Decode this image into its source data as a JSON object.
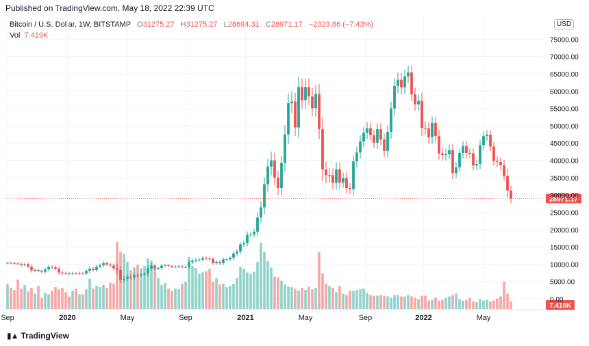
{
  "header": {
    "published": "Published on TradingView.com, May 18, 2022 22:39 UTC"
  },
  "legend": {
    "symbol": "Bitcoin / U.S. Dollar, 1W, BITSTAMP",
    "o_label": "O",
    "o_value": "31275.27",
    "h_label": "H",
    "h_value": "31275.27",
    "l_label": "L",
    "l_value": "28694.31",
    "c_label": "C",
    "c_value": "28971.17",
    "change": "−2323.86 (−7.43%)",
    "vol_label": "Vol",
    "vol_value": "7.419K"
  },
  "currency": "USD",
  "logo_text": "TradingView",
  "logo_icon": "tradingview-logo-icon",
  "colors": {
    "up": "#26a69a",
    "down": "#ef5350",
    "vol_up": "#8fd2c9",
    "vol_down": "#f5a6a5",
    "price_line": "#ef5350",
    "grid": "#f0f3fa",
    "axis_text": "#131722"
  },
  "chart_data": {
    "type": "candlestick",
    "interval": "1W",
    "y_price_ticks": [
      "75000.00",
      "70000.00",
      "65000.00",
      "60000.00",
      "55000.00",
      "50000.00",
      "45000.00",
      "40000.00",
      "35000.00",
      "30000.00",
      "25000.00",
      "20000.00",
      "15000.00",
      "10000.00",
      "5000.00",
      "0.00"
    ],
    "y_price_ticks_values": [
      75000,
      70000,
      65000,
      60000,
      55000,
      50000,
      45000,
      40000,
      35000,
      30000,
      25000,
      20000,
      15000,
      10000,
      5000,
      0
    ],
    "ylim": [
      0,
      75000
    ],
    "x_ticks": [
      {
        "label": "Sep",
        "week": 0
      },
      {
        "label": "2020",
        "week": 17.5
      },
      {
        "label": "May",
        "week": 35
      },
      {
        "label": "Sep",
        "week": 52
      },
      {
        "label": "2021",
        "week": 69.5
      },
      {
        "label": "May",
        "week": 87
      },
      {
        "label": "Sep",
        "week": 104.5
      },
      {
        "label": "2022",
        "week": 121.5
      },
      {
        "label": "May",
        "week": 139
      }
    ],
    "last_price": 28971.17,
    "last_price_label": "28971.17",
    "last_volume_label": "7.419K",
    "close": [
      10400,
      10300,
      10200,
      10100,
      9800,
      10000,
      9300,
      8200,
      8300,
      8100,
      7800,
      8500,
      9200,
      9100,
      8700,
      7600,
      7500,
      7300,
      7200,
      7400,
      7300,
      7500,
      7300,
      8100,
      8700,
      8300,
      9300,
      9700,
      10300,
      9900,
      9600,
      8800,
      8300,
      5400,
      5800,
      6400,
      6200,
      6900,
      6800,
      7000,
      7200,
      8800,
      9600,
      8800,
      8900,
      9600,
      9700,
      9500,
      9200,
      9300,
      9400,
      9200,
      9200,
      10600,
      11000,
      11300,
      11300,
      11800,
      11600,
      11500,
      10300,
      10700,
      10300,
      11400,
      11400,
      11900,
      13100,
      13700,
      15700,
      16100,
      18500,
      18600,
      19400,
      23500,
      26400,
      33100,
      38200,
      40000,
      35000,
      32000,
      39300,
      47500,
      56500,
      57000,
      49500,
      61200,
      57400,
      61200,
      58500,
      55100,
      59200,
      49000,
      37400,
      35700,
      35700,
      33500,
      37400,
      33600,
      34900,
      32000,
      31700,
      39700,
      42300,
      45500,
      48000,
      49300,
      47300,
      45100,
      49000,
      46000,
      42700,
      48200,
      55000,
      61500,
      63300,
      61100,
      64300,
      65400,
      59100,
      56200,
      57200,
      49400,
      49300,
      46700,
      50800,
      47000,
      42000,
      41500,
      41800,
      43000,
      36300,
      38000,
      42100,
      44100,
      42100,
      42000,
      38500,
      38900,
      44400,
      47000,
      47400,
      44000,
      39800,
      39500,
      38600,
      35500,
      31300,
      28971
    ],
    "volume_k": [
      3.5,
      3.0,
      2.7,
      4.2,
      2.9,
      3.4,
      2.5,
      3.0,
      2.2,
      3.3,
      1.6,
      2.3,
      2.1,
      2.6,
      3.1,
      2.8,
      3.0,
      2.4,
      1.8,
      2.6,
      2.9,
      2.1,
      2.1,
      2.8,
      4.3,
      2.9,
      3.3,
      3.1,
      3.4,
      3.0,
      3.7,
      3.6,
      9.5,
      8.1,
      7.8,
      6.7,
      5.5,
      5.9,
      6.3,
      5.8,
      6.1,
      7.2,
      6.9,
      5.8,
      4.4,
      3.4,
      3.7,
      2.9,
      2.6,
      2.9,
      2.8,
      3.6,
      3.9,
      7.4,
      6.1,
      5.8,
      5.0,
      5.2,
      5.4,
      5.7,
      3.9,
      4.4,
      3.5,
      3.6,
      3.1,
      3.3,
      3.6,
      4.4,
      6.0,
      5.7,
      5.2,
      5.0,
      5.3,
      6.7,
      9.4,
      8.1,
      6.8,
      5.9,
      4.6,
      4.5,
      4.0,
      3.5,
      3.2,
      3.1,
      2.9,
      2.6,
      3.0,
      2.7,
      3.2,
      2.8,
      3.0,
      8.1,
      5.1,
      3.6,
      3.3,
      3.0,
      2.4,
      3.3,
      2.2,
      2.0,
      2.6,
      2.6,
      2.7,
      2.8,
      2.9,
      2.3,
      2.0,
      1.9,
      1.9,
      2.0,
      1.9,
      1.8,
      1.6,
      2.0,
      2.0,
      1.8,
      1.8,
      2.0,
      1.8,
      1.6,
      1.4,
      1.9,
      1.9,
      1.2,
      1.3,
      1.6,
      1.2,
      1.3,
      1.6,
      1.8,
      2.0,
      2.2,
      1.4,
      1.2,
      1.3,
      1.6,
      1.1,
      1.0,
      1.4,
      1.2,
      1.3,
      1.1,
      1.2,
      1.5,
      1.8,
      3.9,
      2.2,
      1.1
    ],
    "hl_pad": [
      500,
      500,
      600,
      500,
      900,
      700,
      900,
      1100,
      900,
      800,
      800,
      1000,
      1000,
      900,
      900,
      1200,
      1000,
      800,
      700,
      800,
      600,
      800,
      700,
      900,
      1300,
      900,
      1000,
      900,
      1100,
      800,
      900,
      1100,
      2500,
      1700,
      1400,
      1200,
      1100,
      1200,
      1100,
      1000,
      1000,
      1400,
      1300,
      1100,
      900,
      800,
      800,
      700,
      600,
      700,
      600,
      700,
      700,
      1200,
      1100,
      1000,
      900,
      900,
      800,
      900,
      900,
      800,
      800,
      900,
      700,
      800,
      1200,
      1200,
      1500,
      1400,
      1800,
      1500,
      1600,
      2600,
      3100,
      3600,
      4200,
      4600,
      4000,
      3600,
      3600,
      4800,
      5200,
      5200,
      4500,
      5400,
      4400,
      4500,
      4400,
      4400,
      4500,
      5200,
      6200,
      4200,
      4000,
      3500,
      3700,
      3600,
      2800,
      2800,
      2700,
      3400,
      3100,
      3200,
      3000,
      3200,
      3000,
      2900,
      3200,
      3100,
      3100,
      3400,
      3600,
      4000,
      3700,
      3600,
      3500,
      3700,
      3600,
      3400,
      3400,
      4300,
      3400,
      3300,
      3400,
      3100,
      3300,
      2800,
      2800,
      2700,
      3100,
      2600,
      2500,
      2700,
      2600,
      2400,
      2500,
      2400,
      2600,
      2500,
      2400,
      2500,
      2400,
      2500,
      2500,
      2600,
      3600,
      2600
    ]
  }
}
